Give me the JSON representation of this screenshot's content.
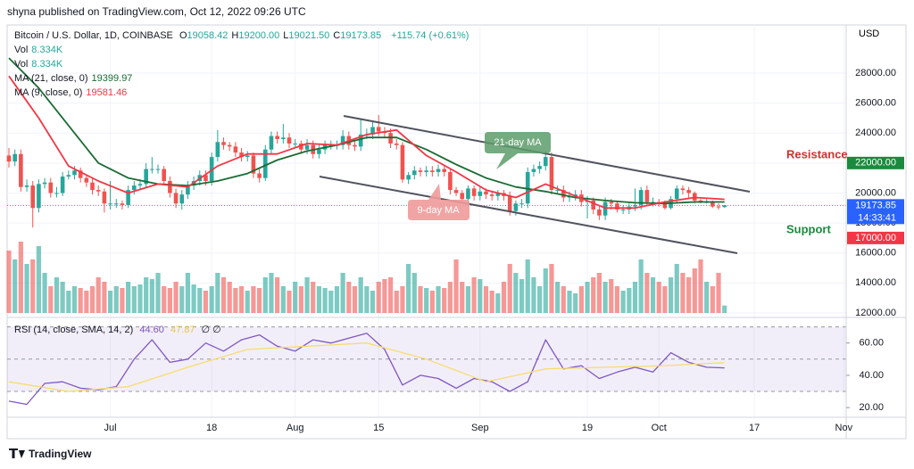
{
  "header": {
    "byline": "shyna published on TradingView.com, Oct 12, 2022 09:26 UTC",
    "footer": "TradingView"
  },
  "chart_data": {
    "type": "candlestick",
    "symbol": "Bitcoin / U.S. Dollar, 1D, COINBASE",
    "ohlc_legend": [
      {
        "name": "O",
        "value": 19058.42
      },
      {
        "name": "H",
        "value": 19200,
        "label": "19200.00"
      },
      {
        "name": "L",
        "value": 19021.5,
        "label": "19021.50"
      },
      {
        "name": "C",
        "value": 19173.85
      }
    ],
    "change": "+115.74 (+0.61%)",
    "currency": "USD",
    "up_color": "#26a69a",
    "down_color": "#ef5350",
    "candles": [
      [
        22500,
        23000,
        21700,
        22100
      ],
      [
        22100,
        22900,
        21800,
        22600
      ],
      [
        22600,
        22900,
        20100,
        20400
      ],
      [
        20400,
        20900,
        20100,
        20500
      ],
      [
        20500,
        20800,
        17700,
        19000
      ],
      [
        19000,
        20900,
        18700,
        20600
      ],
      [
        20600,
        21000,
        20300,
        20700
      ],
      [
        20700,
        21000,
        19700,
        20000
      ],
      [
        20000,
        20400,
        19700,
        20000
      ],
      [
        20000,
        21400,
        19800,
        21100
      ],
      [
        21100,
        21500,
        20900,
        21200
      ],
      [
        21200,
        21800,
        20900,
        21500
      ],
      [
        21500,
        21700,
        20700,
        21000
      ],
      [
        21000,
        21200,
        20400,
        20700
      ],
      [
        20700,
        21000,
        19900,
        20200
      ],
      [
        20200,
        20500,
        19800,
        20100
      ],
      [
        20100,
        20300,
        18700,
        19300
      ],
      [
        19300,
        20800,
        18900,
        19300
      ],
      [
        19300,
        19600,
        19000,
        19300
      ],
      [
        19300,
        19500,
        18900,
        19200
      ],
      [
        19200,
        20500,
        19000,
        20200
      ],
      [
        20200,
        20800,
        19900,
        20500
      ],
      [
        20500,
        20900,
        20200,
        20600
      ],
      [
        20600,
        22000,
        20300,
        21600
      ],
      [
        21600,
        22400,
        21300,
        21600
      ],
      [
        21600,
        21900,
        21300,
        21600
      ],
      [
        21600,
        21800,
        20500,
        20800
      ],
      [
        20800,
        21100,
        19700,
        20000
      ],
      [
        20000,
        20300,
        19000,
        19300
      ],
      [
        19300,
        20200,
        18900,
        19900
      ],
      [
        19900,
        20800,
        19600,
        20500
      ],
      [
        20500,
        21100,
        20200,
        20800
      ],
      [
        20800,
        21500,
        20500,
        21200
      ],
      [
        21200,
        21500,
        20500,
        20800
      ],
      [
        20800,
        22700,
        20500,
        22400
      ],
      [
        22400,
        24200,
        22100,
        23400
      ],
      [
        23400,
        23700,
        22900,
        23200
      ],
      [
        23200,
        23400,
        22800,
        23100
      ],
      [
        23100,
        23400,
        22400,
        22700
      ],
      [
        22700,
        23000,
        22100,
        22400
      ],
      [
        22400,
        22800,
        22100,
        22500
      ],
      [
        22500,
        22700,
        21000,
        21300
      ],
      [
        21300,
        21600,
        20700,
        21000
      ],
      [
        21000,
        23200,
        20800,
        22900
      ],
      [
        22900,
        24100,
        22600,
        23800
      ],
      [
        23800,
        24100,
        23300,
        23600
      ],
      [
        23600,
        24600,
        23300,
        23700
      ],
      [
        23700,
        24000,
        23000,
        23300
      ],
      [
        23300,
        23600,
        23000,
        23300
      ],
      [
        23300,
        23500,
        22600,
        22900
      ],
      [
        22900,
        23600,
        22600,
        23200
      ],
      [
        23200,
        23500,
        22300,
        22600
      ],
      [
        22600,
        23200,
        22300,
        22900
      ],
      [
        22900,
        23500,
        22600,
        23200
      ],
      [
        23200,
        23500,
        22900,
        23200
      ],
      [
        23200,
        23500,
        22900,
        23200
      ],
      [
        23200,
        24200,
        22900,
        23800
      ],
      [
        23800,
        24100,
        22900,
        23200
      ],
      [
        23200,
        23500,
        22800,
        23100
      ],
      [
        23100,
        24900,
        22800,
        23900
      ],
      [
        23900,
        24300,
        23600,
        23900
      ],
      [
        23900,
        24800,
        23600,
        24400
      ],
      [
        24400,
        25200,
        23800,
        24100
      ],
      [
        24100,
        24400,
        23700,
        24000
      ],
      [
        24000,
        24300,
        23000,
        23300
      ],
      [
        23300,
        23600,
        22900,
        23200
      ],
      [
        23200,
        23400,
        20700,
        20900
      ],
      [
        20900,
        21400,
        20600,
        21200
      ],
      [
        21200,
        21800,
        20900,
        21500
      ],
      [
        21500,
        21700,
        21100,
        21400
      ],
      [
        21400,
        21800,
        21100,
        21500
      ],
      [
        21500,
        21800,
        21100,
        21400
      ],
      [
        21400,
        21900,
        21100,
        21600
      ],
      [
        21600,
        21800,
        21100,
        21400
      ],
      [
        21400,
        21600,
        19900,
        20200
      ],
      [
        20200,
        20400,
        19800,
        20000
      ],
      [
        20000,
        20200,
        19300,
        19600
      ],
      [
        19600,
        20500,
        19300,
        20300
      ],
      [
        20300,
        20500,
        19500,
        19800
      ],
      [
        19800,
        20400,
        19500,
        20100
      ],
      [
        20100,
        20300,
        19600,
        19900
      ],
      [
        19900,
        20100,
        19500,
        19800
      ],
      [
        19800,
        20200,
        19500,
        20000
      ],
      [
        20000,
        20200,
        19500,
        19800
      ],
      [
        19800,
        20100,
        18500,
        18800
      ],
      [
        18800,
        19500,
        18500,
        19300
      ],
      [
        19300,
        19600,
        19000,
        19300
      ],
      [
        19300,
        21700,
        19000,
        21400
      ],
      [
        21400,
        21900,
        21100,
        21600
      ],
      [
        21600,
        22100,
        21300,
        21800
      ],
      [
        21800,
        22800,
        21500,
        22400
      ],
      [
        22400,
        22700,
        19900,
        20200
      ],
      [
        20200,
        20500,
        19900,
        20200
      ],
      [
        20200,
        20500,
        19400,
        19700
      ],
      [
        19700,
        20100,
        19400,
        19800
      ],
      [
        19800,
        20200,
        19500,
        19900
      ],
      [
        19900,
        20200,
        19100,
        19400
      ],
      [
        19400,
        19800,
        18300,
        19500
      ],
      [
        19500,
        19700,
        18600,
        18900
      ],
      [
        18900,
        19200,
        18200,
        18500
      ],
      [
        18500,
        19700,
        18200,
        19400
      ],
      [
        19400,
        19600,
        18900,
        19300
      ],
      [
        19300,
        19500,
        18700,
        18900
      ],
      [
        18900,
        19200,
        18600,
        18900
      ],
      [
        18900,
        19300,
        18600,
        19100
      ],
      [
        19100,
        20300,
        18800,
        19200
      ],
      [
        19200,
        20400,
        18900,
        20200
      ],
      [
        20200,
        20500,
        19100,
        19400
      ],
      [
        19400,
        19700,
        19100,
        19400
      ],
      [
        19400,
        19600,
        19100,
        19300
      ],
      [
        19300,
        19500,
        18900,
        19000
      ],
      [
        19000,
        19800,
        18900,
        19600
      ],
      [
        19600,
        20500,
        19300,
        20300
      ],
      [
        20300,
        20500,
        19900,
        20200
      ],
      [
        20200,
        20400,
        19700,
        20000
      ],
      [
        20000,
        20100,
        19300,
        19500
      ],
      [
        19500,
        19600,
        19300,
        19400
      ],
      [
        19400,
        19600,
        19300,
        19400
      ],
      [
        19400,
        19500,
        19000,
        19100
      ],
      [
        19100,
        19300,
        18900,
        19058.42
      ],
      [
        19058.42,
        19200,
        19021.5,
        19173.85
      ]
    ],
    "volume": {
      "ylim": [
        0,
        100
      ],
      "values": [
        70,
        60,
        80,
        55,
        60,
        75,
        45,
        30,
        40,
        35,
        25,
        30,
        28,
        25,
        30,
        40,
        35,
        25,
        30,
        28,
        35,
        30,
        32,
        40,
        38,
        45,
        30,
        28,
        35,
        30,
        45,
        32,
        28,
        25,
        30,
        45,
        40,
        35,
        28,
        30,
        25,
        30,
        28,
        40,
        45,
        40,
        30,
        25,
        35,
        30,
        40,
        35,
        30,
        28,
        25,
        30,
        45,
        35,
        30,
        40,
        30,
        25,
        35,
        38,
        40,
        25,
        30,
        55,
        45,
        30,
        28,
        25,
        30,
        28,
        35,
        60,
        35,
        30,
        40,
        38,
        30,
        25,
        22,
        35,
        55,
        45,
        38,
        60,
        40,
        30,
        50,
        55,
        35,
        30,
        25,
        22,
        30,
        35,
        40,
        45,
        35,
        38,
        30,
        25,
        28,
        35,
        60,
        45,
        40,
        35,
        30,
        40,
        55,
        45,
        40,
        50,
        60,
        35,
        30,
        45,
        8.334
      ]
    },
    "volume_legend": [
      {
        "name": "Vol",
        "value": 8.334,
        "value_label": "8.334K"
      },
      {
        "name": "Vol",
        "value": 8.334,
        "value_label": "8.334K"
      }
    ],
    "ma": [
      {
        "name": "MA (21, close, 0)",
        "color": "#1b6b34",
        "x": [
          0,
          5,
          10,
          15,
          20,
          25,
          30,
          35,
          40,
          45,
          50,
          55,
          60,
          65,
          70,
          75,
          80,
          85,
          90,
          95,
          100,
          105,
          110,
          115,
          120
        ],
        "values": [
          29000,
          27000,
          24500,
          22000,
          21000,
          20600,
          20500,
          20800,
          21300,
          22200,
          22800,
          23200,
          23700,
          23700,
          22900,
          21900,
          21000,
          20400,
          20100,
          19700,
          19500,
          19350,
          19300,
          19400,
          19399.97
        ]
      },
      {
        "name": "MA (9, close, 0)",
        "color": "#f23645",
        "x": [
          0,
          5,
          10,
          15,
          20,
          25,
          30,
          35,
          40,
          45,
          50,
          55,
          60,
          65,
          70,
          75,
          80,
          85,
          90,
          95,
          100,
          105,
          110,
          115,
          120
        ],
        "values": [
          27800,
          25000,
          21800,
          20800,
          20000,
          20600,
          20400,
          21800,
          22600,
          22600,
          23300,
          23200,
          23900,
          24200,
          22500,
          21400,
          20200,
          19700,
          20600,
          19800,
          19000,
          19000,
          19400,
          19700,
          19581.46
        ]
      }
    ],
    "xlim": [
      -0.3,
      140.4
    ],
    "xticks": [
      {
        "value": 17,
        "label": "Jul"
      },
      {
        "value": 34,
        "label": "18"
      },
      {
        "value": 48,
        "label": "Aug"
      },
      {
        "value": 62,
        "label": "15"
      },
      {
        "value": 79,
        "label": "Sep"
      },
      {
        "value": 97,
        "label": "19"
      },
      {
        "value": 109,
        "label": "Oct"
      },
      {
        "value": 125,
        "label": "17"
      },
      {
        "value": 140,
        "label": "Nov"
      }
    ],
    "ylim": [
      11760,
      31090
    ],
    "yticks": [
      {
        "value": 12000,
        "label": "12000.00"
      },
      {
        "value": 14000,
        "label": "14000.00"
      },
      {
        "value": 16000,
        "label": "16000.00"
      },
      {
        "value": 18000,
        "label": "18000.00"
      },
      {
        "value": 20000,
        "label": "20000.00"
      },
      {
        "value": 22000,
        "label": "22000.00"
      },
      {
        "value": 24000,
        "label": "24000.00"
      },
      {
        "value": 26000,
        "label": "26000.00"
      },
      {
        "value": 28000,
        "label": "28000.00"
      }
    ],
    "grid": true,
    "last_price": {
      "value": 19173.85,
      "countdown": "14:33:41",
      "color": "#2962ff"
    },
    "resistance": {
      "name": "Resistance",
      "value": 22000,
      "label": "22000.00",
      "color": "#1b8a3e",
      "text_color": "#d32f2f"
    },
    "support": {
      "name": "Support",
      "value": 17000,
      "label": "17000.00",
      "color": "#f23645",
      "text_color": "#1b8a3e"
    },
    "annotations": {
      "ma21": "21-day MA",
      "ma9": "9-day MA"
    },
    "rsi": {
      "name": "RSI (14, close, SMA, 14, 2)",
      "ylim": [
        15.1,
        75.3
      ],
      "yticks": [
        {
          "value": 20,
          "label": "20.00"
        },
        {
          "value": 40,
          "label": "40.00"
        },
        {
          "value": 60,
          "label": "60.00"
        }
      ],
      "band": [
        30,
        70
      ],
      "mid": 50,
      "extra": "∅ ∅",
      "series": [
        {
          "color": "#7e57c2",
          "x": [
            0,
            3,
            6,
            9,
            12,
            15,
            18,
            21,
            24,
            27,
            30,
            33,
            36,
            39,
            42,
            45,
            48,
            51,
            54,
            57,
            60,
            63,
            66,
            69,
            72,
            75,
            78,
            81,
            84,
            87,
            90,
            93,
            96,
            99,
            102,
            105,
            108,
            111,
            114,
            117,
            120
          ],
          "values": [
            24,
            22,
            35,
            36,
            32,
            31,
            33,
            50,
            62,
            48,
            50,
            60,
            55,
            62,
            65,
            58,
            55,
            62,
            60,
            63,
            66,
            56,
            34,
            40,
            38,
            32,
            38,
            36,
            30,
            36,
            62,
            44,
            46,
            38,
            42,
            45,
            42,
            54,
            48,
            45,
            44.6
          ],
          "value_label": "44.60"
        },
        {
          "color": "#f7dc6f",
          "x": [
            0,
            10,
            20,
            30,
            40,
            50,
            60,
            70,
            80,
            90,
            100,
            110,
            120
          ],
          "values": [
            36,
            30,
            33,
            45,
            56,
            58,
            60,
            50,
            36,
            44,
            45,
            46,
            47.87
          ]
        }
      ]
    }
  }
}
